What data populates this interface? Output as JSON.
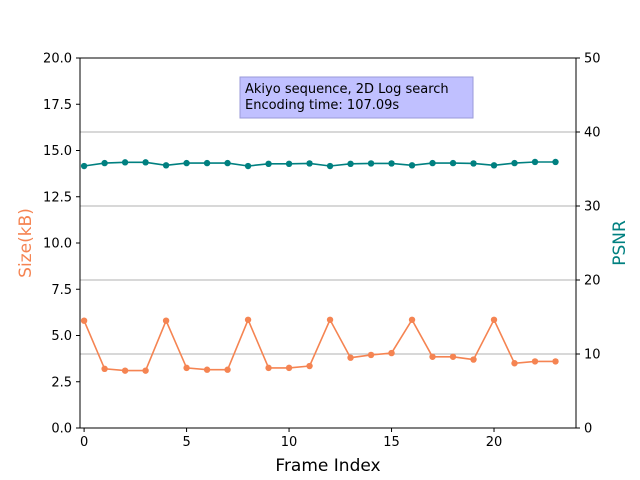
{
  "chart_data": {
    "type": "line",
    "x": [
      0,
      1,
      2,
      3,
      4,
      5,
      6,
      7,
      8,
      9,
      10,
      11,
      12,
      13,
      14,
      15,
      16,
      17,
      18,
      19,
      20,
      21,
      22,
      23
    ],
    "xlabel": "Frame Index",
    "xlim": [
      -0.2,
      24
    ],
    "xticks": [
      0,
      5,
      10,
      15,
      20
    ],
    "y_left": {
      "label": "Size(kB)",
      "lim": [
        0,
        20
      ],
      "ticks": [
        0.0,
        2.5,
        5.0,
        7.5,
        10.0,
        12.5,
        15.0,
        17.5,
        20.0
      ],
      "tick_labels": [
        "0.0",
        "2.5",
        "5.0",
        "7.5",
        "10.0",
        "12.5",
        "15.0",
        "17.5",
        "20.0"
      ],
      "color": "#f58452"
    },
    "y_right": {
      "label": "PSNR",
      "lim": [
        0,
        50
      ],
      "ticks": [
        0,
        10,
        20,
        30,
        40,
        50
      ],
      "tick_labels": [
        "0",
        "10",
        "20",
        "30",
        "40",
        "50"
      ],
      "color": "#008080"
    },
    "grid": "right-axis horizontal",
    "series": [
      {
        "axis": "left",
        "color": "#f58452",
        "values": [
          5.8,
          3.2,
          3.1,
          3.1,
          5.8,
          3.25,
          3.15,
          3.15,
          5.85,
          3.25,
          3.25,
          3.35,
          5.85,
          3.8,
          3.95,
          4.05,
          5.85,
          3.85,
          3.85,
          3.7,
          5.85,
          3.5,
          3.6,
          3.6
        ]
      },
      {
        "axis": "right",
        "color": "#008080",
        "values": [
          35.4,
          35.8,
          35.9,
          35.9,
          35.5,
          35.8,
          35.8,
          35.8,
          35.4,
          35.7,
          35.7,
          35.75,
          35.4,
          35.7,
          35.75,
          35.75,
          35.5,
          35.8,
          35.8,
          35.75,
          35.5,
          35.8,
          35.95,
          35.95
        ]
      }
    ],
    "annotation": {
      "lines": [
        "Akiyo sequence, 2D Log search",
        "Encoding time: 107.09s"
      ],
      "box_color": "#c0c0ff"
    }
  }
}
